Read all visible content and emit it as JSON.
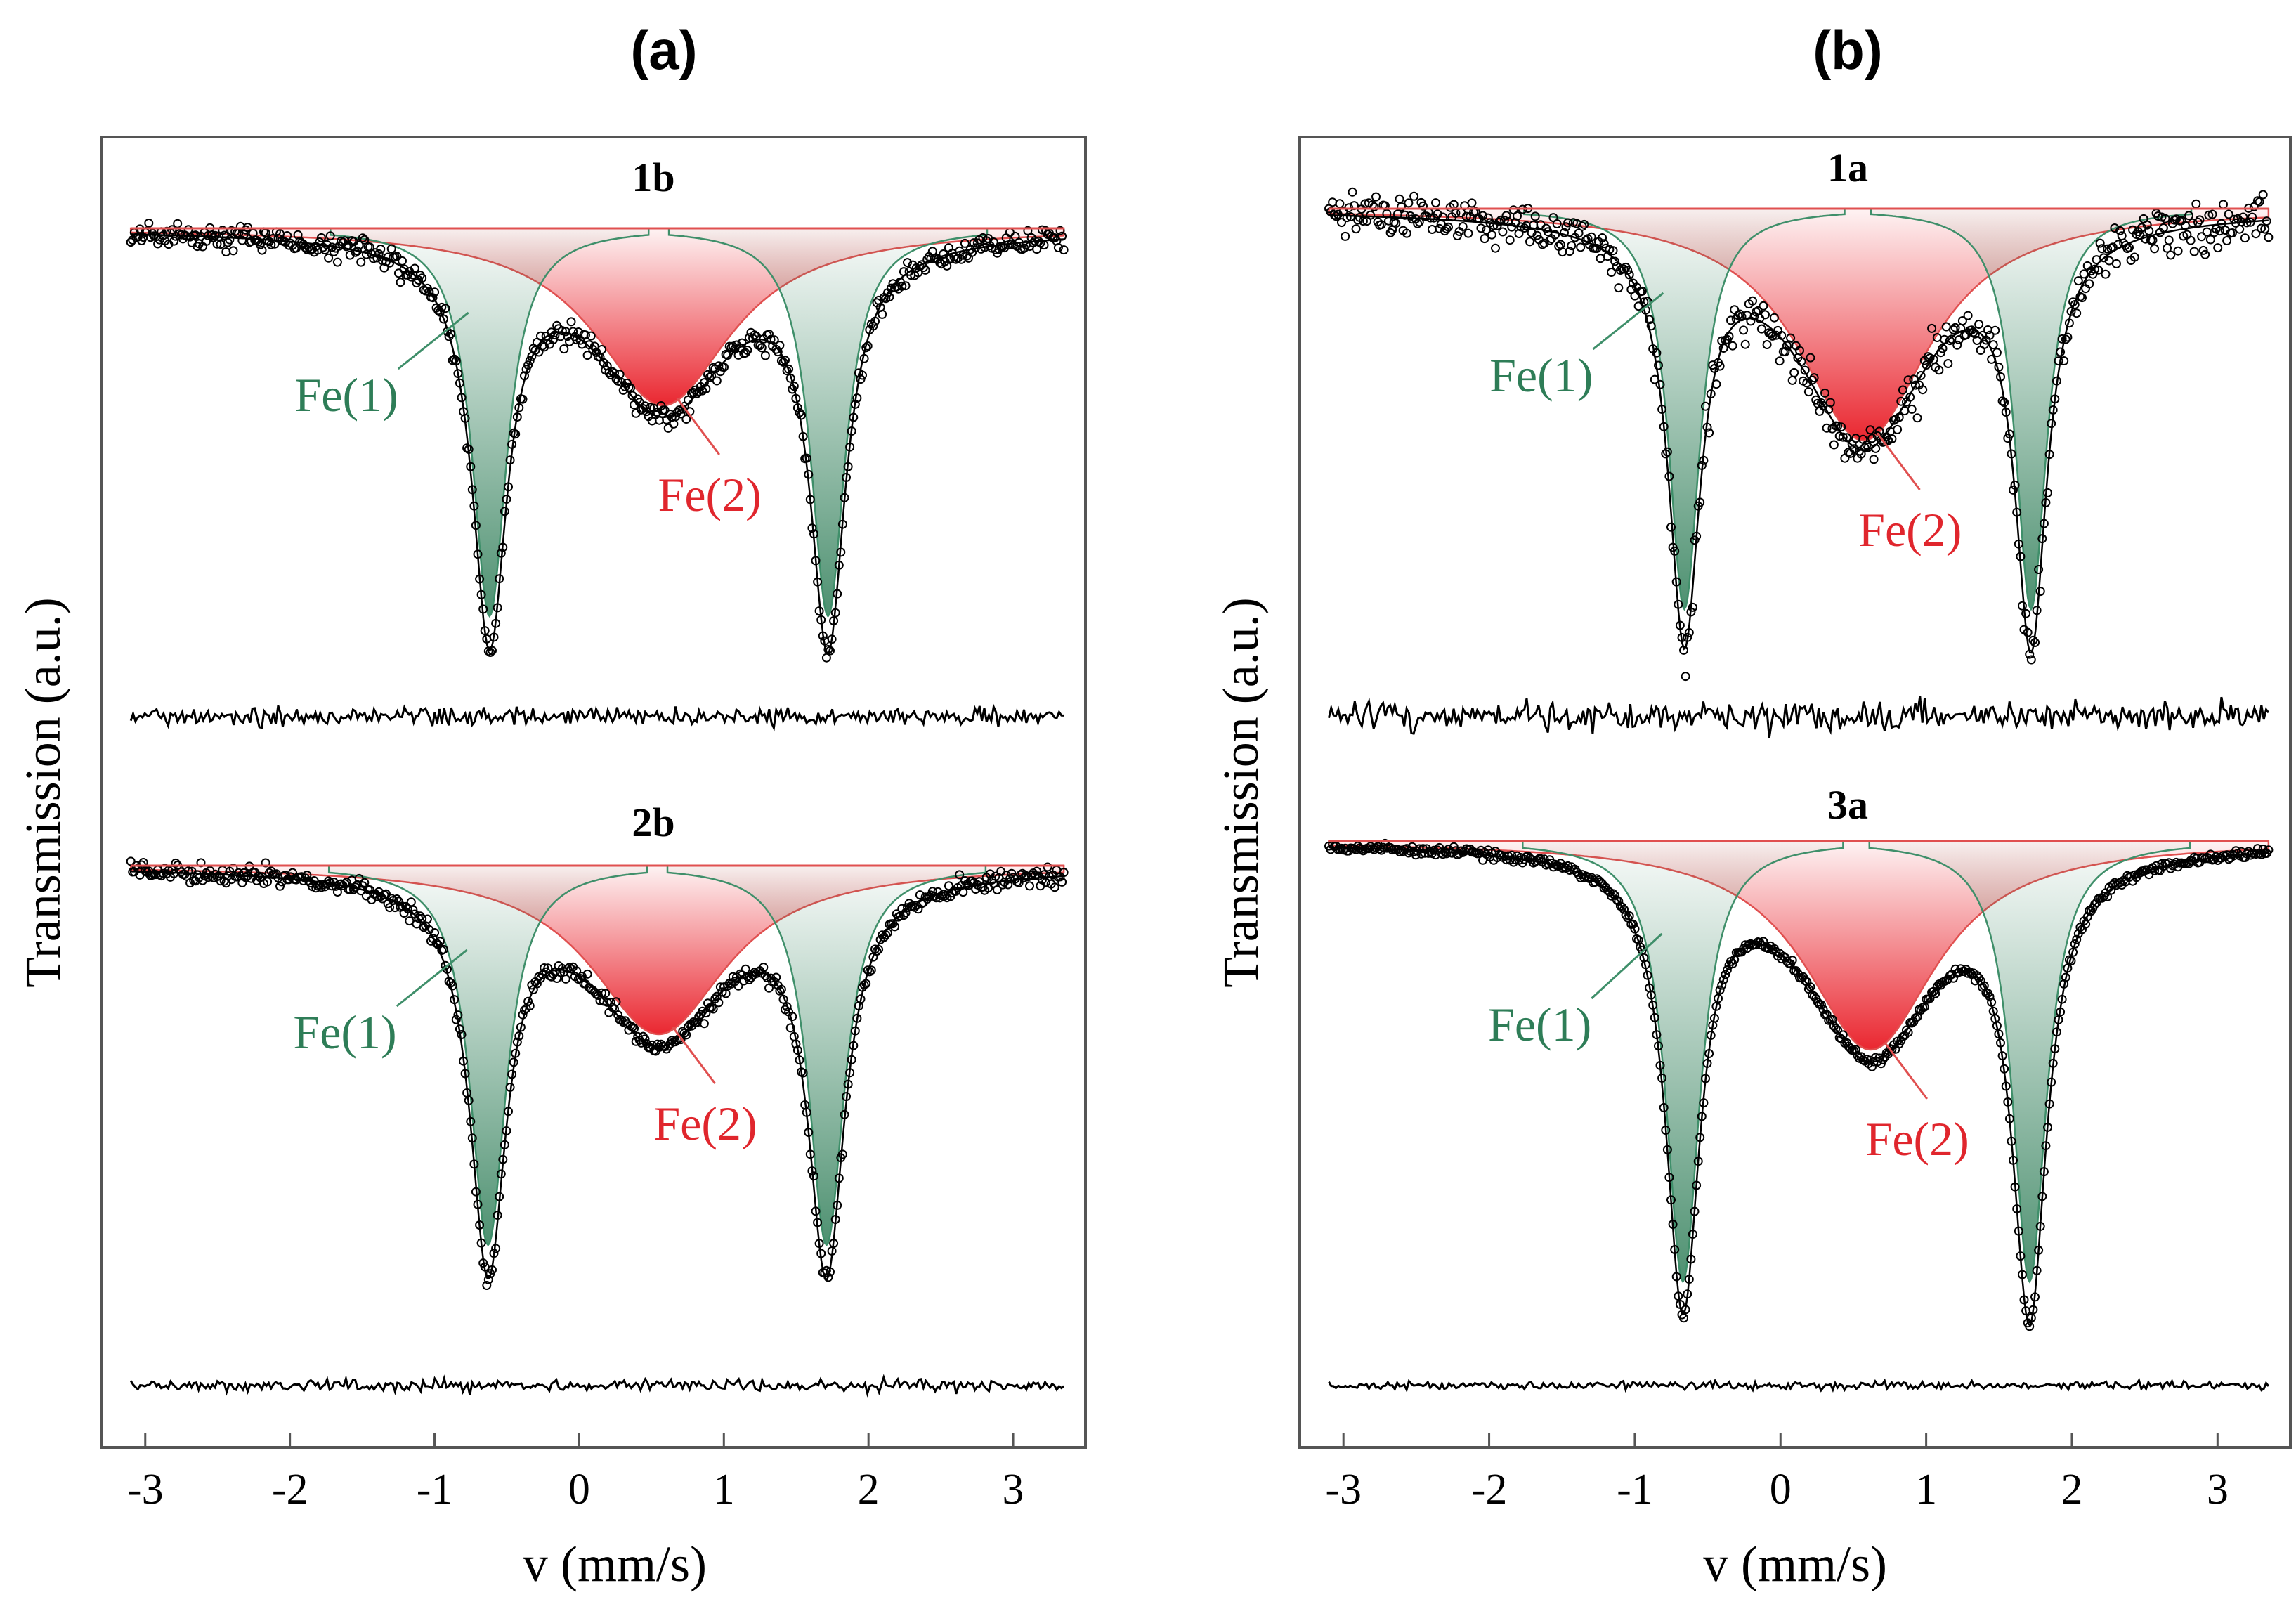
{
  "colors": {
    "fe1_line": "#3f8f6a",
    "fe1_fill": "#2e7d57",
    "fe2_line": "#e05050",
    "fe2_fill": "#e8141e",
    "fe2_label": "#e0262d",
    "fe1_label": "#2e7d57",
    "data": "#000000",
    "frame": "#555555"
  },
  "chart_data": [
    {
      "type": "scatter",
      "panel_label": "(a)",
      "xlabel": "v (mm/s)",
      "ylabel": "Transmission (a.u.)",
      "xlim": [
        -3.3,
        3.5
      ],
      "x_ticks": [
        -3,
        -2,
        -1,
        0,
        1,
        2,
        3
      ],
      "x_tick_labels": [
        "-3",
        "-2",
        "-1",
        "0",
        "1",
        "2",
        "3"
      ],
      "spectra": [
        {
          "title": "1b",
          "fe1_doublet": {
            "label": "Fe(1)",
            "centers": [
              -0.62,
              1.72
            ],
            "depth": 0.92,
            "width": 0.29
          },
          "fe2_singlet": {
            "label": "Fe(2)",
            "center": 0.58,
            "depth": 0.42,
            "width": 1.15
          },
          "noise_level": 0.024,
          "residual_amplitude": 0.035
        },
        {
          "title": "2b",
          "fe1_doublet": {
            "label": "Fe(1)",
            "centers": [
              -0.63,
              1.71
            ],
            "depth": 0.9,
            "width": 0.3
          },
          "fe2_singlet": {
            "label": "Fe(2)",
            "center": 0.55,
            "depth": 0.4,
            "width": 1.15
          },
          "noise_level": 0.018,
          "residual_amplitude": 0.025
        }
      ]
    },
    {
      "type": "scatter",
      "panel_label": "(b)",
      "xlabel": "v (mm/s)",
      "ylabel": "Transmission (a.u.)",
      "xlim": [
        -3.3,
        3.5
      ],
      "x_ticks": [
        -3,
        -2,
        -1,
        0,
        1,
        2,
        3
      ],
      "x_tick_labels": [
        "-3",
        "-2",
        "-1",
        "0",
        "1",
        "2",
        "3"
      ],
      "spectra": [
        {
          "title": "1a",
          "fe1_doublet": {
            "label": "Fe(1)",
            "centers": [
              -0.66,
              1.72
            ],
            "depth": 0.95,
            "width": 0.26
          },
          "fe2_singlet": {
            "label": "Fe(2)",
            "center": 0.57,
            "depth": 0.55,
            "width": 1.1
          },
          "noise_level": 0.045,
          "residual_amplitude": 0.06
        },
        {
          "title": "3a",
          "fe1_doublet": {
            "label": "Fe(1)",
            "centers": [
              -0.67,
              1.71
            ],
            "depth": 0.95,
            "width": 0.28
          },
          "fe2_singlet": {
            "label": "Fe(2)",
            "center": 0.62,
            "depth": 0.45,
            "width": 1.1
          },
          "noise_level": 0.008,
          "residual_amplitude": 0.015
        }
      ]
    }
  ]
}
